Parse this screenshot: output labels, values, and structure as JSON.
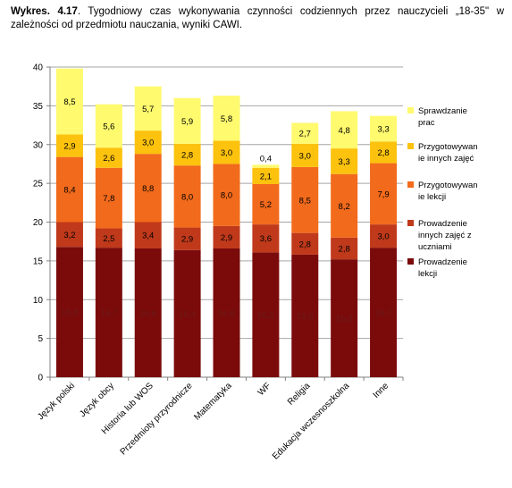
{
  "caption": {
    "prefix": "Wykres. 4.17",
    "text": ". Tygodniowy czas wykonywania czynności codziennych przez nauczycieli „18-35\" w zależności od przedmiotu nauczania, wyniki CAWI."
  },
  "chart_data": {
    "type": "bar",
    "stacked": true,
    "categories": [
      "Język polski",
      "Język obcy",
      "Historia lub WOS",
      "Przedmioty przyrodnicze",
      "Matematyka",
      "WF",
      "Religia",
      "Edukacja wczesnoszkolna",
      "Inne"
    ],
    "ylim": [
      0,
      40
    ],
    "yticks": [
      0,
      5,
      10,
      15,
      20,
      25,
      30,
      35,
      40
    ],
    "grid": true,
    "legend_position": "right",
    "series": [
      {
        "name": "Prowadzenie lekcji",
        "color": "#7b0b0b",
        "label_color": "#6a1a1a",
        "values": [
          16.8,
          16.7,
          16.6,
          16.4,
          16.6,
          16.1,
          15.8,
          15.2,
          16.7
        ],
        "labels": [
          "16,8",
          "16,7",
          "16,6",
          "16,4",
          "16,6",
          "16,1",
          "15,8",
          "15,2",
          "16,7"
        ]
      },
      {
        "name": "Prowadzenie innych zajęć z uczniami",
        "color": "#c0391b",
        "label_color": "#000000",
        "values": [
          3.2,
          2.5,
          3.4,
          2.9,
          2.9,
          3.6,
          2.8,
          2.8,
          3.0
        ],
        "labels": [
          "3,2",
          "2,5",
          "3,4",
          "2,9",
          "2,9",
          "3,6",
          "2,8",
          "2,8",
          "3,0"
        ]
      },
      {
        "name": "Przygotowywanie lekcji",
        "color": "#f26a1b",
        "label_color": "#000000",
        "values": [
          8.4,
          7.8,
          8.8,
          8.0,
          8.0,
          5.2,
          8.5,
          8.2,
          7.9
        ],
        "labels": [
          "8,4",
          "7,8",
          "8,8",
          "8,0",
          "8,0",
          "5,2",
          "8,5",
          "8,2",
          "7,9"
        ]
      },
      {
        "name": "Przygotowywanie innych zajęć",
        "color": "#fcc20e",
        "label_color": "#000000",
        "values": [
          2.9,
          2.6,
          3.0,
          2.8,
          3.0,
          2.1,
          3.0,
          3.3,
          2.8
        ],
        "labels": [
          "2,9",
          "2,6",
          "3,0",
          "2,8",
          "3,0",
          "2,1",
          "3,0",
          "3,3",
          "2,8"
        ]
      },
      {
        "name": "Sprawdzanie prac",
        "color": "#fffa6e",
        "label_color": "#000000",
        "values": [
          8.5,
          5.6,
          5.7,
          5.9,
          5.8,
          0.4,
          2.7,
          4.8,
          3.3
        ],
        "labels": [
          "8,5",
          "5,6",
          "5,7",
          "5,9",
          "5,8",
          "0,4",
          "2,7",
          "4,8",
          "3,3"
        ]
      }
    ],
    "legend": [
      {
        "lines": [
          "Sprawdzanie",
          "prac"
        ],
        "color": "#fffa6e"
      },
      {
        "lines": [
          "Przygotowywan",
          "ie innych zajęć"
        ],
        "color": "#fcc20e"
      },
      {
        "lines": [
          "Przygotowywan",
          "ie lekcji"
        ],
        "color": "#f26a1b"
      },
      {
        "lines": [
          "Prowadzenie",
          "innych zajęć z",
          "uczniami"
        ],
        "color": "#c0391b"
      },
      {
        "lines": [
          "Prowadzenie",
          "lekcji"
        ],
        "color": "#7b0b0b"
      }
    ]
  }
}
